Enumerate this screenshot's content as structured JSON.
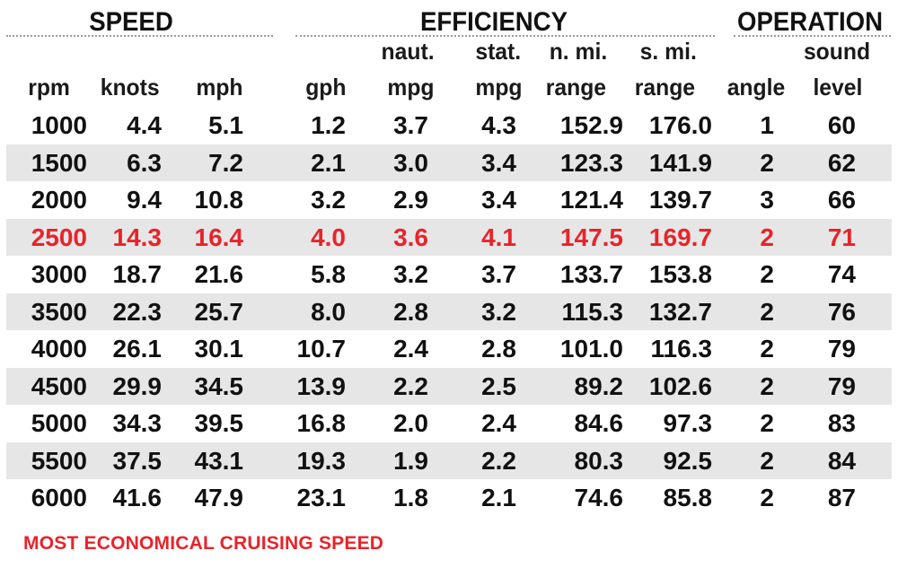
{
  "groups": {
    "speed": "SPEED",
    "efficiency": "EFFICIENCY",
    "operation": "OPERATION"
  },
  "headers": {
    "rpm": [
      "",
      "rpm"
    ],
    "knots": [
      "",
      "knots"
    ],
    "mph": [
      "",
      "mph"
    ],
    "gph": [
      "",
      "gph"
    ],
    "naut_mpg": [
      "naut.",
      "mpg"
    ],
    "stat_mpg": [
      "stat.",
      "mpg"
    ],
    "nmi_range": [
      "n. mi.",
      "range"
    ],
    "smi_range": [
      "s. mi.",
      "range"
    ],
    "angle": [
      "",
      "angle"
    ],
    "sound": [
      "sound",
      "level"
    ]
  },
  "rows": [
    [
      "1000",
      "4.4",
      "5.1",
      "1.2",
      "3.7",
      "4.3",
      "152.9",
      "176.0",
      "1",
      "60"
    ],
    [
      "1500",
      "6.3",
      "7.2",
      "2.1",
      "3.0",
      "3.4",
      "123.3",
      "141.9",
      "2",
      "62"
    ],
    [
      "2000",
      "9.4",
      "10.8",
      "3.2",
      "2.9",
      "3.4",
      "121.4",
      "139.7",
      "3",
      "66"
    ],
    [
      "2500",
      "14.3",
      "16.4",
      "4.0",
      "3.6",
      "4.1",
      "147.5",
      "169.7",
      "2",
      "71"
    ],
    [
      "3000",
      "18.7",
      "21.6",
      "5.8",
      "3.2",
      "3.7",
      "133.7",
      "153.8",
      "2",
      "74"
    ],
    [
      "3500",
      "22.3",
      "25.7",
      "8.0",
      "2.8",
      "3.2",
      "115.3",
      "132.7",
      "2",
      "76"
    ],
    [
      "4000",
      "26.1",
      "30.1",
      "10.7",
      "2.4",
      "2.8",
      "101.0",
      "116.3",
      "2",
      "79"
    ],
    [
      "4500",
      "29.9",
      "34.5",
      "13.9",
      "2.2",
      "2.5",
      "89.2",
      "102.6",
      "2",
      "79"
    ],
    [
      "5000",
      "34.3",
      "39.5",
      "16.8",
      "2.0",
      "2.4",
      "84.6",
      "97.3",
      "2",
      "83"
    ],
    [
      "5500",
      "37.5",
      "43.1",
      "19.3",
      "1.9",
      "2.2",
      "80.3",
      "92.5",
      "2",
      "84"
    ],
    [
      "6000",
      "41.6",
      "47.9",
      "23.1",
      "1.8",
      "2.1",
      "74.6",
      "85.8",
      "2",
      "87"
    ]
  ],
  "highlight_row_index": 3,
  "footnote": "MOST ECONOMICAL CRUISING SPEED",
  "colors": {
    "highlight": "#e8232a",
    "row_shade": "#e6e6e6",
    "text": "#111111"
  }
}
